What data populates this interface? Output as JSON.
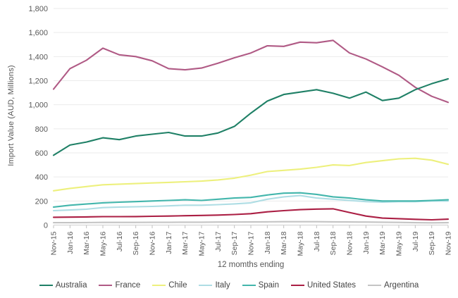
{
  "chart_data": {
    "type": "line",
    "title": "",
    "xlabel": "12 momths ending",
    "ylabel": "Import Value (AUD, Millions)",
    "x_tick_labels": [
      "Nov-15",
      "Jan-16",
      "Mar-16",
      "May-16",
      "Jul-16",
      "Sep-16",
      "Nov-16",
      "Jan-17",
      "Mar-17",
      "May-17",
      "Jul-17",
      "Sep-17",
      "Nov-17",
      "Jan-18",
      "Mar-18",
      "May-18",
      "Jul-18",
      "Sep-18",
      "Nov-18",
      "Jan-19",
      "Mar-19",
      "May-19",
      "Jul-19",
      "Sep-19",
      "Nov-19"
    ],
    "y_tick_labels": [
      "0",
      "200",
      "400",
      "600",
      "800",
      "1,000",
      "1,200",
      "1,400",
      "1,600",
      "1,800"
    ],
    "ylim": [
      0,
      1800
    ],
    "y_step": 200,
    "grid": "horizontal",
    "legend_position": "bottom",
    "colors": {
      "grid": "#ebebeb",
      "axis": "#d6d6d6",
      "tick": "#bfbfbf",
      "tick_text": "#595959"
    },
    "series": [
      {
        "name": "Australia",
        "color": "#1f8066",
        "values": [
          580,
          665,
          690,
          725,
          710,
          740,
          755,
          770,
          740,
          740,
          765,
          820,
          930,
          1030,
          1085,
          1105,
          1125,
          1095,
          1055,
          1105,
          1035,
          1055,
          1125,
          1175,
          1215
        ]
      },
      {
        "name": "France",
        "color": "#b05a85",
        "values": [
          1130,
          1300,
          1370,
          1470,
          1415,
          1400,
          1365,
          1300,
          1290,
          1305,
          1345,
          1390,
          1430,
          1490,
          1485,
          1520,
          1515,
          1535,
          1430,
          1380,
          1315,
          1245,
          1145,
          1070,
          1020
        ]
      },
      {
        "name": "Chile",
        "color": "#edf07d",
        "values": [
          285,
          305,
          320,
          335,
          340,
          345,
          350,
          355,
          360,
          365,
          375,
          390,
          415,
          445,
          455,
          465,
          480,
          500,
          495,
          520,
          535,
          550,
          555,
          540,
          505
        ]
      },
      {
        "name": "Italy",
        "color": "#aedde4",
        "values": [
          120,
          125,
          132,
          145,
          150,
          152,
          155,
          160,
          165,
          165,
          170,
          176,
          185,
          215,
          235,
          245,
          225,
          215,
          205,
          195,
          190,
          195,
          195,
          200,
          200
        ]
      },
      {
        "name": "Spain",
        "color": "#43b6ac",
        "values": [
          150,
          165,
          175,
          185,
          190,
          195,
          200,
          205,
          210,
          205,
          215,
          225,
          230,
          250,
          265,
          268,
          255,
          235,
          225,
          210,
          200,
          200,
          200,
          205,
          210
        ]
      },
      {
        "name": "United States",
        "color": "#ab1f44",
        "values": [
          65,
          66,
          68,
          70,
          70,
          71,
          73,
          75,
          78,
          80,
          83,
          88,
          95,
          110,
          120,
          128,
          133,
          135,
          105,
          75,
          58,
          53,
          48,
          44,
          49
        ]
      },
      {
        "name": "Argentina",
        "color": "#c4c4c4",
        "values": [
          20,
          20,
          21,
          22,
          22,
          22,
          23,
          23,
          24,
          24,
          25,
          25,
          26,
          27,
          28,
          28,
          28,
          27,
          26,
          25,
          24,
          22,
          20,
          19,
          20
        ]
      }
    ]
  }
}
